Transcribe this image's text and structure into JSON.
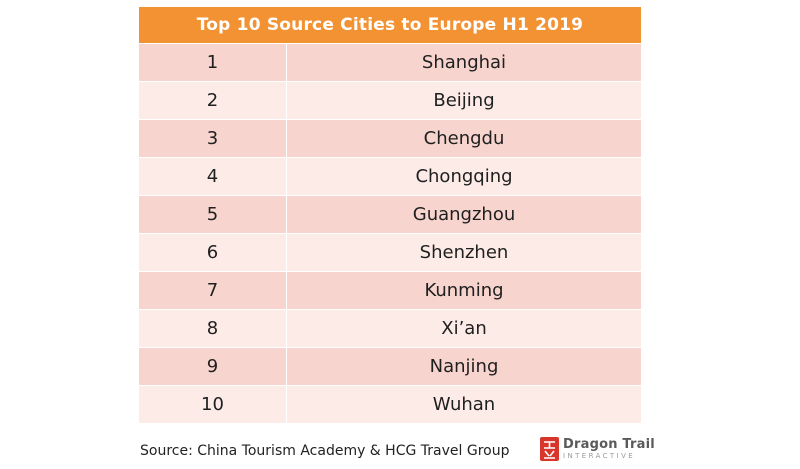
{
  "title": "Top 10 Source Cities to Europe H1 2019",
  "rows": [
    {
      "rank": "1",
      "city": "Shanghai"
    },
    {
      "rank": "2",
      "city": "Beijing"
    },
    {
      "rank": "3",
      "city": "Chengdu"
    },
    {
      "rank": "4",
      "city": "Chongqing"
    },
    {
      "rank": "5",
      "city": "Guangzhou"
    },
    {
      "rank": "6",
      "city": "Shenzhen"
    },
    {
      "rank": "7",
      "city": "Kunming"
    },
    {
      "rank": "8",
      "city": "Xi’an"
    },
    {
      "rank": "9",
      "city": "Nanjing"
    },
    {
      "rank": "10",
      "city": "Wuhan"
    }
  ],
  "source": "Source: China Tourism Academy & HCG Travel Group",
  "logo": {
    "name": "Dragon Trail",
    "subtitle": "INTERACTIVE",
    "icon": "dragon-trail-logo-mark"
  },
  "colors": {
    "header": "#f39233",
    "row_odd": "#f7d4cd",
    "row_even": "#fcebe7",
    "logo_red": "#d9362b"
  }
}
